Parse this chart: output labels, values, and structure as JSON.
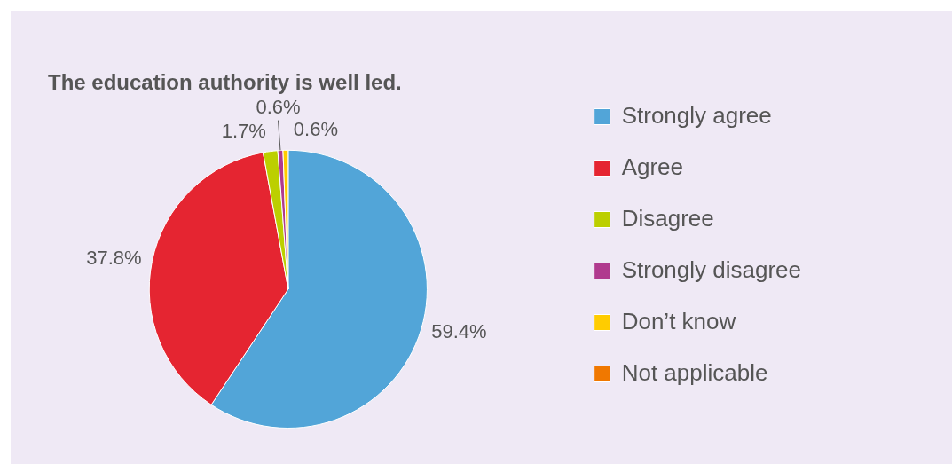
{
  "chart_data": {
    "type": "pie",
    "title": "The education authority is well led.",
    "categories": [
      "Strongly agree",
      "Agree",
      "Disagree",
      "Strongly disagree",
      "Don’t know",
      "Not applicable"
    ],
    "values": [
      59.4,
      37.8,
      1.7,
      0.6,
      0.6,
      0
    ],
    "value_labels": [
      "59.4%",
      "37.8%",
      "1.7%",
      "0.6%",
      "0.6%",
      null
    ],
    "colors": [
      "#52a5d8",
      "#e52531",
      "#bccf00",
      "#b03a8e",
      "#ffcc00",
      "#f07800"
    ],
    "legend": "right"
  }
}
